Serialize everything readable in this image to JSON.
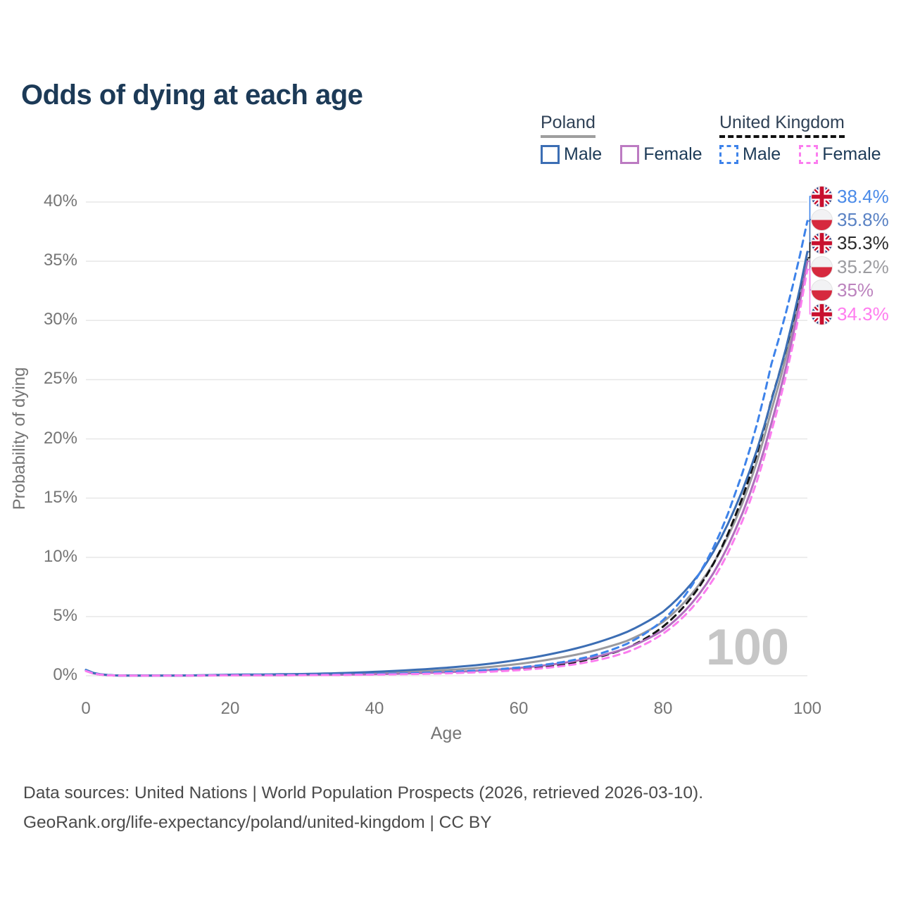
{
  "title": "Odds of dying at each age",
  "watermark": "100",
  "legend": {
    "groups": [
      {
        "label": "Poland",
        "underline_color": "#9e9e9e",
        "underline_dashed": false,
        "items": [
          {
            "label": "Male",
            "color": "#3c6eb4",
            "dashed": false
          },
          {
            "label": "Female",
            "color": "#bc7bc2",
            "dashed": false
          }
        ]
      },
      {
        "label": "United Kingdom",
        "underline_color": "#111111",
        "underline_dashed": true,
        "items": [
          {
            "label": "Male",
            "color": "#3e83ea",
            "dashed": true
          },
          {
            "label": "Female",
            "color": "#fb7def",
            "dashed": true
          }
        ]
      }
    ]
  },
  "chart_data": {
    "type": "line",
    "title": "Odds of dying at each age",
    "xlabel": "Age",
    "ylabel": "Probability of dying",
    "xlim": [
      0,
      100
    ],
    "ylim": [
      0,
      40
    ],
    "x_tick_labels": [
      "0",
      "20",
      "40",
      "60",
      "80",
      "100"
    ],
    "x_ticks": [
      0,
      20,
      40,
      60,
      80,
      100
    ],
    "y_tick_labels": [
      "0%",
      "5%",
      "10%",
      "15%",
      "20%",
      "25%",
      "30%",
      "35%",
      "40%"
    ],
    "y_ticks": [
      0,
      5,
      10,
      15,
      20,
      25,
      30,
      35,
      40
    ],
    "grid": "horizontal",
    "legend_position": "top-right",
    "x": [
      0,
      5,
      10,
      15,
      20,
      25,
      30,
      35,
      40,
      45,
      50,
      55,
      60,
      65,
      70,
      75,
      80,
      85,
      90,
      95,
      100
    ],
    "series": [
      {
        "name": "United Kingdom Male",
        "country": "United Kingdom",
        "sex": "Male",
        "flag": "uk",
        "color": "#3e83ea",
        "label_color": "#4a8ae8",
        "dashed": true,
        "end_label": "38.4%",
        "values": [
          0.45,
          0.012,
          0.01,
          0.028,
          0.058,
          0.068,
          0.08,
          0.105,
          0.15,
          0.22,
          0.32,
          0.47,
          0.7,
          1.05,
          1.65,
          2.7,
          4.7,
          8.6,
          15.4,
          26.3,
          38.4
        ]
      },
      {
        "name": "Poland Male",
        "country": "Poland",
        "sex": "Male",
        "flag": "pl",
        "color": "#3c6eb4",
        "label_color": "#5a82c4",
        "dashed": false,
        "end_label": "35.8%",
        "values": [
          0.5,
          0.016,
          0.012,
          0.038,
          0.09,
          0.115,
          0.15,
          0.22,
          0.33,
          0.48,
          0.68,
          0.95,
          1.35,
          1.9,
          2.65,
          3.7,
          5.4,
          8.6,
          14.2,
          23.2,
          35.8
        ]
      },
      {
        "name": "United Kingdom Both sexes",
        "country": "United Kingdom",
        "sex": "Both",
        "flag": "uk",
        "color": "#141414",
        "label_color": "#2b2b2b",
        "dashed": true,
        "end_label": "35.3%",
        "values": [
          0.42,
          0.01,
          0.008,
          0.022,
          0.042,
          0.05,
          0.06,
          0.08,
          0.115,
          0.17,
          0.25,
          0.37,
          0.56,
          0.88,
          1.42,
          2.35,
          4.15,
          7.5,
          13.5,
          23.3,
          35.3
        ]
      },
      {
        "name": "Poland Both sexes",
        "country": "Poland",
        "sex": "Both",
        "flag": "pl",
        "color": "#9a9a9e",
        "label_color": "#9c9ca0",
        "dashed": false,
        "end_label": "35.2%",
        "values": [
          0.46,
          0.014,
          0.01,
          0.028,
          0.062,
          0.075,
          0.095,
          0.14,
          0.22,
          0.33,
          0.48,
          0.69,
          1.0,
          1.45,
          2.05,
          2.95,
          4.55,
          7.7,
          13.1,
          22.4,
          35.2
        ]
      },
      {
        "name": "Poland Female",
        "country": "Poland",
        "sex": "Female",
        "flag": "pl",
        "color": "#af6fbc",
        "label_color": "#bc83be",
        "dashed": false,
        "end_label": "35%",
        "values": [
          0.42,
          0.012,
          0.009,
          0.02,
          0.04,
          0.048,
          0.06,
          0.085,
          0.13,
          0.2,
          0.3,
          0.45,
          0.66,
          0.98,
          1.5,
          2.35,
          3.85,
          6.9,
          12.3,
          21.3,
          35.0
        ]
      },
      {
        "name": "United Kingdom Female",
        "country": "United Kingdom",
        "sex": "Female",
        "flag": "uk",
        "color": "#fb7def",
        "label_color": "#ff7def",
        "dashed": true,
        "end_label": "34.3%",
        "values": [
          0.4,
          0.009,
          0.007,
          0.018,
          0.032,
          0.038,
          0.048,
          0.065,
          0.095,
          0.14,
          0.205,
          0.31,
          0.47,
          0.74,
          1.2,
          2.0,
          3.55,
          6.45,
          11.7,
          20.6,
          34.3
        ]
      }
    ]
  },
  "footer": {
    "line1": "Data sources: United Nations | World Population Prospects (2026, retrieved 2026-03-10).",
    "line2": "GeoRank.org/life-expectancy/poland/united-kingdom | CC BY"
  }
}
